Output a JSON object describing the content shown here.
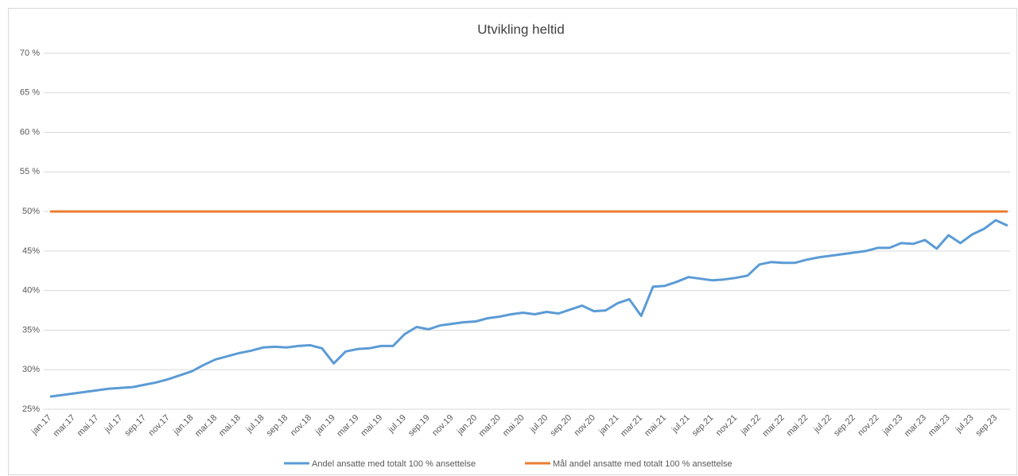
{
  "chart_data": {
    "type": "line",
    "title": "Utvikling heltid",
    "categories": [
      "jan.17",
      null,
      "mar.17",
      null,
      "mai.17",
      null,
      "jul.17",
      null,
      "sep.17",
      null,
      "nov.17",
      null,
      "jan.18",
      null,
      "mar.18",
      null,
      "mai.18",
      null,
      "jul.18",
      null,
      "sep.18",
      null,
      "nov.18",
      null,
      "jan.19",
      null,
      "mar.19",
      null,
      "mai.19",
      null,
      "jul.19",
      null,
      "sep.19",
      null,
      "nov.19",
      null,
      "jan.20",
      null,
      "mar.20",
      null,
      "mai.20",
      null,
      "jul.20",
      null,
      "sep.20",
      null,
      "nov.20",
      null,
      "jan.21",
      null,
      "mar.21",
      null,
      "mai.21",
      null,
      "jul.21",
      null,
      "sep.21",
      null,
      "nov.21",
      null,
      "jan.22",
      null,
      "mar.22",
      null,
      "mai.22",
      null,
      "jul.22",
      null,
      "sep.22",
      null,
      "nov.22",
      null,
      "jan.23",
      null,
      "mar.23",
      null,
      "mai.23",
      null,
      "jul.23",
      null,
      "sep.23",
      null
    ],
    "series": [
      {
        "name": "Andel ansatte med totalt 100 % ansettelse",
        "color": "#5b9bd5",
        "values": [
          26.6,
          26.8,
          27.0,
          27.2,
          27.4,
          27.6,
          27.7,
          27.8,
          28.1,
          28.4,
          28.8,
          29.3,
          29.8,
          30.6,
          31.3,
          31.7,
          32.1,
          32.4,
          32.8,
          32.9,
          32.8,
          33.0,
          33.1,
          32.7,
          30.8,
          32.3,
          32.6,
          32.7,
          33.0,
          33.0,
          34.5,
          35.4,
          35.1,
          35.6,
          35.8,
          36.0,
          36.1,
          36.5,
          36.7,
          37.0,
          37.2,
          37.0,
          37.3,
          37.1,
          37.6,
          38.1,
          37.4,
          37.5,
          38.4,
          38.9,
          36.8,
          40.5,
          40.6,
          41.1,
          41.7,
          41.5,
          41.3,
          41.4,
          41.6,
          41.9,
          43.3,
          43.6,
          43.5,
          43.5,
          43.9,
          44.2,
          44.4,
          44.6,
          44.8,
          45.0,
          45.4,
          45.4,
          46.0,
          45.9,
          46.4,
          45.3,
          47.0,
          46.0,
          47.1,
          47.8,
          48.9,
          48.2
        ]
      },
      {
        "name": "Mål andel ansatte med totalt 100 % ansettelse",
        "color": "#ed7d31",
        "values": [
          50,
          50,
          50,
          50,
          50,
          50,
          50,
          50,
          50,
          50,
          50,
          50,
          50,
          50,
          50,
          50,
          50,
          50,
          50,
          50,
          50,
          50,
          50,
          50,
          50,
          50,
          50,
          50,
          50,
          50,
          50,
          50,
          50,
          50,
          50,
          50,
          50,
          50,
          50,
          50,
          50,
          50,
          50,
          50,
          50,
          50,
          50,
          50,
          50,
          50,
          50,
          50,
          50,
          50,
          50,
          50,
          50,
          50,
          50,
          50,
          50,
          50,
          50,
          50,
          50,
          50,
          50,
          50,
          50,
          50,
          50,
          50,
          50,
          50,
          50,
          50,
          50,
          50,
          50,
          50,
          50,
          50
        ]
      }
    ],
    "ylim": [
      25,
      70
    ],
    "yticks": [
      {
        "value": 25,
        "label": "25%"
      },
      {
        "value": 30,
        "label": "30%"
      },
      {
        "value": 35,
        "label": "35%"
      },
      {
        "value": 40,
        "label": "40%"
      },
      {
        "value": 45,
        "label": "45%"
      },
      {
        "value": 50,
        "label": "50%"
      },
      {
        "value": 55,
        "label": "55 %"
      },
      {
        "value": 60,
        "label": "60 %"
      },
      {
        "value": 65,
        "label": "65 %"
      },
      {
        "value": 70,
        "label": "70 %"
      }
    ],
    "grid": true,
    "legend": "bottom"
  }
}
